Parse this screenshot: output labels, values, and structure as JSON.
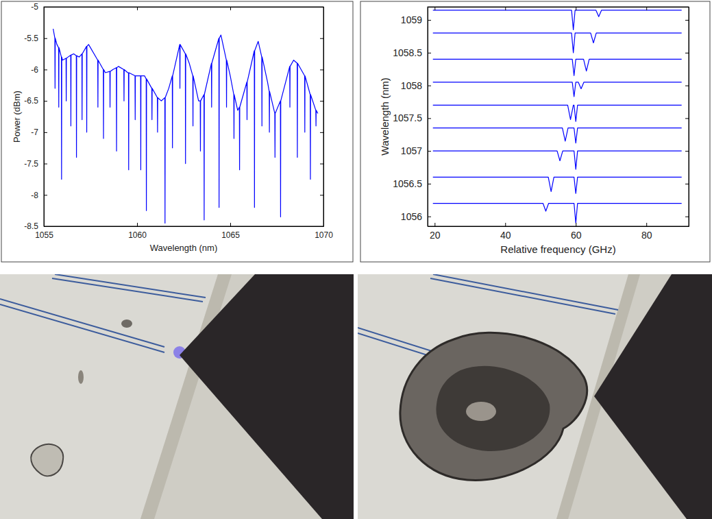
{
  "chart_data": [
    {
      "type": "line",
      "x_label": "Wavelength (nm)",
      "y_label": "Power (dBm)",
      "color": "#0000ff",
      "grid": false,
      "xlim": [
        1055,
        1070
      ],
      "ylim": [
        -8.5,
        -5
      ],
      "xticks": [
        1055,
        1060,
        1065,
        1070
      ],
      "yticks": [
        -8.5,
        -8,
        -7.5,
        -7,
        -6.5,
        -6,
        -5.5,
        -5
      ],
      "x": [
        1055.5,
        1055.59,
        1055.6,
        1055.61,
        1055.7,
        1055.79,
        1055.8,
        1055.81,
        1055.94,
        1055.95,
        1055.96,
        1056.0,
        1056.19,
        1056.2,
        1056.21,
        1056.3,
        1056.44,
        1056.45,
        1056.46,
        1056.6,
        1056.74,
        1056.75,
        1056.76,
        1056.9,
        1057.04,
        1057.05,
        1057.06,
        1057.29,
        1057.3,
        1057.31,
        1057.4,
        1057.89,
        1057.9,
        1057.91,
        1058.0,
        1058.19,
        1058.2,
        1058.21,
        1058.3,
        1058.54,
        1058.55,
        1058.56,
        1058.7,
        1058.89,
        1058.9,
        1058.91,
        1059.0,
        1059.29,
        1059.3,
        1059.31,
        1059.5,
        1059.54,
        1059.55,
        1059.56,
        1059.89,
        1059.9,
        1059.91,
        1060.0,
        1060.19,
        1060.2,
        1060.21,
        1060.4,
        1060.49,
        1060.5,
        1060.51,
        1060.79,
        1060.8,
        1060.81,
        1061.0,
        1061.09,
        1061.1,
        1061.11,
        1061.3,
        1061.49,
        1061.5,
        1061.51,
        1061.7,
        1061.89,
        1061.9,
        1061.91,
        1062.29,
        1062.3,
        1062.31,
        1062.59,
        1062.6,
        1062.61,
        1062.8,
        1062.99,
        1063.0,
        1063.01,
        1063.3,
        1063.39,
        1063.4,
        1063.41,
        1063.59,
        1063.6,
        1063.61,
        1063.99,
        1064.0,
        1064.01,
        1064.39,
        1064.4,
        1064.41,
        1064.5,
        1064.79,
        1064.8,
        1064.81,
        1065.0,
        1065.19,
        1065.2,
        1065.21,
        1065.4,
        1065.49,
        1065.5,
        1065.51,
        1065.89,
        1065.9,
        1065.91,
        1066.29,
        1066.3,
        1066.31,
        1066.5,
        1066.69,
        1066.7,
        1066.71,
        1067.0,
        1067.09,
        1067.1,
        1067.11,
        1067.39,
        1067.4,
        1067.41,
        1067.69,
        1067.7,
        1067.71,
        1068.19,
        1068.2,
        1068.21,
        1068.4,
        1068.59,
        1068.6,
        1068.61,
        1068.99,
        1069.0,
        1069.01,
        1069.29,
        1069.3,
        1069.31,
        1069.59,
        1069.6,
        1069.61,
        1069.7
      ],
      "values": [
        -5.35,
        -5.5,
        -6.3,
        -5.5,
        -5.6,
        -5.65,
        -6.6,
        -5.65,
        -5.8,
        -7.75,
        -5.8,
        -5.85,
        -5.82,
        -6.5,
        -5.82,
        -5.8,
        -5.77,
        -6.9,
        -5.77,
        -5.75,
        -5.78,
        -7.4,
        -5.78,
        -5.8,
        -5.75,
        -6.8,
        -5.75,
        -5.63,
        -7.0,
        -5.63,
        -5.6,
        -5.85,
        -6.6,
        -5.85,
        -5.9,
        -6.0,
        -7.1,
        -6.0,
        -6.05,
        -6.03,
        -6.6,
        -6.03,
        -6.0,
        -5.97,
        -7.3,
        -5.97,
        -5.95,
        -6.0,
        -6.5,
        -6.0,
        -6.05,
        -6.05,
        -7.6,
        -6.05,
        -6.1,
        -6.8,
        -6.1,
        -6.1,
        -6.1,
        -7.6,
        -6.1,
        -6.1,
        -6.15,
        -8.25,
        -6.15,
        -6.3,
        -6.8,
        -6.3,
        -6.4,
        -6.45,
        -7.0,
        -6.45,
        -6.5,
        -6.45,
        -8.45,
        -6.45,
        -6.3,
        -6.1,
        -7.25,
        -6.1,
        -5.6,
        -6.3,
        -5.6,
        -5.75,
        -7.5,
        -5.75,
        -5.9,
        -6.1,
        -6.9,
        -6.1,
        -6.5,
        -6.5,
        -7.3,
        -6.5,
        -6.4,
        -8.4,
        -6.4,
        -5.9,
        -6.6,
        -5.9,
        -5.5,
        -8.2,
        -5.5,
        -5.45,
        -5.85,
        -6.6,
        -5.85,
        -6.1,
        -6.4,
        -7.1,
        -6.4,
        -6.65,
        -6.6,
        -7.6,
        -6.6,
        -6.2,
        -6.8,
        -6.2,
        -5.7,
        -8.2,
        -5.7,
        -5.55,
        -5.8,
        -6.9,
        -5.8,
        -6.2,
        -6.35,
        -7.0,
        -6.35,
        -6.7,
        -7.4,
        -6.7,
        -6.5,
        -8.35,
        -6.5,
        -5.95,
        -6.6,
        -5.95,
        -5.85,
        -5.9,
        -7.4,
        -5.9,
        -6.1,
        -7.0,
        -6.1,
        -6.4,
        -7.75,
        -6.4,
        -6.65,
        -6.9,
        -6.65,
        -6.7
      ]
    },
    {
      "type": "line",
      "x_label": "Relative frequency (GHz)",
      "y_label": "Wavelength (nm)",
      "grid": false,
      "xlim": [
        18,
        92
      ],
      "ylim": [
        1055.85,
        1059.2
      ],
      "xticks": [
        20,
        40,
        60,
        80
      ],
      "yticks": [
        1056,
        1056.5,
        1057,
        1057.5,
        1058,
        1058.5,
        1059
      ],
      "series": [
        {
          "color": "#0000ff",
          "x": [
            19.5,
            50.7,
            51.5,
            52.3,
            59.5,
            60,
            60.5,
            90
          ],
          "values": [
            1056.2,
            1056.2,
            1056.08,
            1056.2,
            1056.2,
            1055.9,
            1056.2,
            1056.2
          ]
        },
        {
          "color": "#0000ff",
          "x": [
            19.5,
            52.2,
            53,
            53.8,
            59.5,
            60,
            60.5,
            90
          ],
          "values": [
            1056.6,
            1056.6,
            1056.38,
            1056.6,
            1056.6,
            1056.35,
            1056.6,
            1056.6
          ]
        },
        {
          "color": "#0000ff",
          "x": [
            19.5,
            54.7,
            55.5,
            56.3,
            59.5,
            60,
            60.5,
            90
          ],
          "values": [
            1057,
            1057,
            1056.85,
            1057,
            1057,
            1056.72,
            1057,
            1057
          ]
        },
        {
          "color": "#0000ff",
          "x": [
            19.5,
            56.2,
            57,
            57.8,
            59.5,
            60,
            60.5,
            90
          ],
          "values": [
            1057.35,
            1057.35,
            1057.15,
            1057.35,
            1057.35,
            1057.12,
            1057.35,
            1057.35
          ]
        },
        {
          "color": "#0000ff",
          "x": [
            19.5,
            57.7,
            58.5,
            59.3,
            59.5,
            60,
            60.5,
            90
          ],
          "values": [
            1057.7,
            1057.7,
            1057.48,
            1057.7,
            1057.7,
            1057.45,
            1057.7,
            1057.7
          ]
        },
        {
          "color": "#0000ff",
          "x": [
            19.5,
            59,
            59.5,
            60,
            60.7,
            61.5,
            62.3,
            90
          ],
          "values": [
            1058.05,
            1058.05,
            1057.83,
            1058.05,
            1058.05,
            1057.95,
            1058.05,
            1058.05
          ]
        },
        {
          "color": "#0000ff",
          "x": [
            19.5,
            59,
            59.5,
            60,
            62.2,
            63,
            63.8,
            90
          ],
          "values": [
            1058.4,
            1058.4,
            1058.15,
            1058.4,
            1058.4,
            1058.22,
            1058.4,
            1058.4
          ]
        },
        {
          "color": "#0000ff",
          "x": [
            19.5,
            58.8,
            59.3,
            59.8,
            64.2,
            65,
            65.8,
            90
          ],
          "values": [
            1058.8,
            1058.8,
            1058.5,
            1058.8,
            1058.8,
            1058.65,
            1058.8,
            1058.8
          ]
        },
        {
          "color": "#0000ff",
          "x": [
            19.5,
            58.8,
            59.3,
            59.8,
            65.7,
            66.5,
            67.3,
            90
          ],
          "values": [
            1059.15,
            1059.15,
            1058.85,
            1059.15,
            1059.15,
            1059.05,
            1059.15,
            1059.15
          ]
        }
      ]
    }
  ]
}
